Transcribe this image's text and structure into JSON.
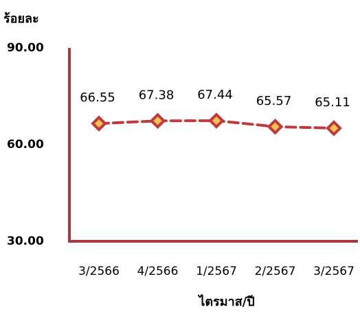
{
  "chart_data": {
    "type": "line",
    "title": "",
    "ylabel": "ร้อยละ",
    "xlabel": "ไตรมาส/ปี",
    "categories": [
      "3/2566",
      "4/2566",
      "1/2567",
      "2/2567",
      "3/2567"
    ],
    "series": [
      {
        "values": [
          66.55,
          67.38,
          67.44,
          65.57,
          65.11
        ]
      }
    ],
    "data_labels": [
      "66.55",
      "67.38",
      "67.44",
      "65.57",
      "65.11"
    ],
    "y_ticks": [
      "30.00",
      "60.00",
      "90.00"
    ],
    "ylim": [
      30,
      90
    ],
    "grid": false,
    "legend": "none",
    "line_style": "dashed",
    "marker": "diamond",
    "colors": {
      "axis": "#a8383b",
      "line": "#c0393d",
      "marker_fill": "#f2c14e",
      "marker_stroke": "#c0393d"
    }
  }
}
